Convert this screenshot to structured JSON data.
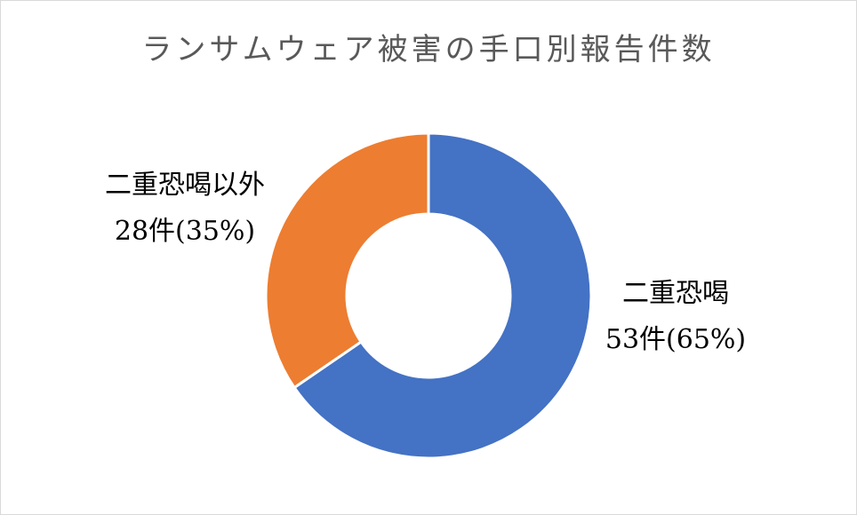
{
  "chart_data": {
    "type": "pie",
    "title": "ランサムウェア被害の手口別報告件数",
    "donut": true,
    "slices": [
      {
        "label": "二重恐喝",
        "value": 53,
        "percent": 65,
        "value_text": "53件(65%)",
        "color": "#4472c4"
      },
      {
        "label": "二重恐喝以外",
        "value": 28,
        "percent": 35,
        "value_text": "28件(35%)",
        "color": "#ed7d31"
      }
    ],
    "legend": "none"
  }
}
